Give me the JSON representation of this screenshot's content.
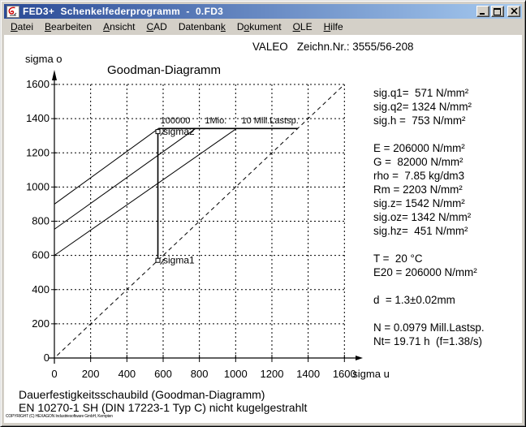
{
  "window": {
    "title": "FED3+  Schenkelfederprogramm  -  0.FD3",
    "controls": {
      "minimize": "minimize",
      "maximize": "maximize",
      "close": "close"
    }
  },
  "menu": {
    "items": [
      {
        "label": "Datei",
        "underline": 0
      },
      {
        "label": "Bearbeiten",
        "underline": 0
      },
      {
        "label": "Ansicht",
        "underline": 0
      },
      {
        "label": "CAD",
        "underline": 0
      },
      {
        "label": "Datenbank",
        "underline": 8
      },
      {
        "label": "Dokument",
        "underline": 1
      },
      {
        "label": "OLE",
        "underline": 0
      },
      {
        "label": "Hilfe",
        "underline": 0
      }
    ]
  },
  "header": {
    "drawing_info": "VALEO   Zeichn.Nr.: 3555/56-208"
  },
  "results_panel": {
    "groups": [
      [
        "sig.q1=  571 N/mm²",
        "sig.q2= 1324 N/mm²",
        "sig.h =  753 N/mm²"
      ],
      [
        "E = 206000 N/mm²",
        "G =  82000 N/mm²",
        "rho =  7.85 kg/dm3",
        "Rm = 2203 N/mm²",
        "sig.z= 1542 N/mm²",
        "sig.oz= 1342 N/mm²",
        "sig.hz=  451 N/mm²"
      ],
      [
        "T =  20 °C",
        "E20 = 206000 N/mm²"
      ],
      [
        "d  = 1.3±0.02mm"
      ],
      [
        "N = 0.0979 Mill.Lastsp.",
        "Nt= 19.71 h  (f=1.38/s)"
      ]
    ]
  },
  "footer": {
    "line1": "Dauerfestigkeitsschaubild (Goodman-Diagramm)",
    "line2": "EN 10270-1 SH (DIN 17223-1 Typ C) nicht kugelgestrahlt"
  },
  "copyright": "COPYRIGHT (C) HEXAGON Industriesoftware GmbH, Kempten",
  "chart_data": {
    "type": "line",
    "title": "Goodman-Diagramm",
    "xlabel": "sigma u",
    "ylabel": "sigma o",
    "xlim": [
      0,
      1600
    ],
    "ylim": [
      0,
      1600
    ],
    "tick_step": 200,
    "grid": true,
    "legend_position": "none",
    "series": [
      {
        "name": "mean-stress-diagonal",
        "style": "dashed",
        "width": 1,
        "points": [
          [
            15,
            15
          ],
          [
            1590,
            1590
          ]
        ]
      },
      {
        "name": "goodman-line-100000",
        "style": "solid",
        "width": 1,
        "points": [
          [
            0,
            900
          ],
          [
            574,
            1342
          ]
        ]
      },
      {
        "name": "goodman-line-1mio",
        "style": "solid",
        "width": 1,
        "points": [
          [
            0,
            753
          ],
          [
            779,
            1342
          ]
        ]
      },
      {
        "name": "goodman-line-10mill",
        "style": "solid",
        "width": 1,
        "points": [
          [
            0,
            600
          ],
          [
            1005,
            1342
          ]
        ]
      },
      {
        "name": "endurance-limit-line",
        "style": "solid",
        "width": 1.6,
        "points": [
          [
            574,
            1342
          ],
          [
            1342,
            1342
          ]
        ]
      },
      {
        "name": "stress-range-line",
        "style": "solid",
        "width": 1.6,
        "points": [
          [
            571,
            571
          ],
          [
            571,
            1324
          ]
        ],
        "markers": "square"
      }
    ],
    "annotations": [
      {
        "text": "100000",
        "x": 585,
        "y": 1372,
        "size": 11
      },
      {
        "text": "1Mio.",
        "x": 830,
        "y": 1372,
        "size": 11
      },
      {
        "text": "10 Mill.Lastsp.",
        "x": 1032,
        "y": 1372,
        "size": 11
      },
      {
        "text": "sigma2",
        "x": 600,
        "y": 1305,
        "size": 12,
        "leader": [
          571,
          1324
        ]
      },
      {
        "text": "sigma1",
        "x": 600,
        "y": 552,
        "size": 12,
        "leader": [
          571,
          571
        ]
      }
    ]
  }
}
